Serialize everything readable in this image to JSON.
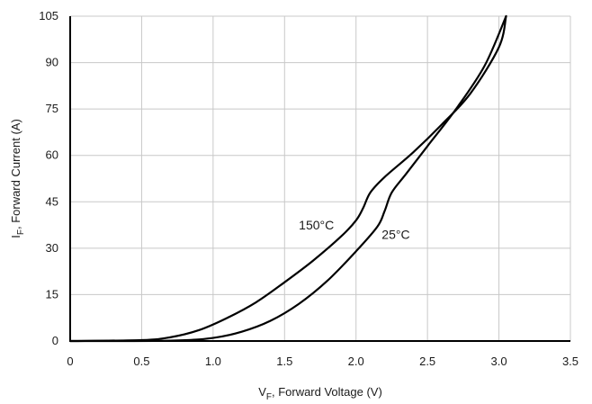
{
  "chart_data": {
    "type": "line",
    "xlabel": {
      "main": "V",
      "sub": "F",
      "rest": ", Forward Voltage (V)"
    },
    "ylabel": {
      "main": "I",
      "sub": "F",
      "rest": ", Forward Current (A)"
    },
    "xlim": [
      0,
      3.5
    ],
    "ylim": [
      0,
      105
    ],
    "xticks": [
      "0",
      "0.5",
      "1.0",
      "1.5",
      "2.0",
      "2.5",
      "3.0",
      "3.5"
    ],
    "xtick_values": [
      0,
      0.5,
      1.0,
      1.5,
      2.0,
      2.5,
      3.0,
      3.5
    ],
    "yticks": [
      "0",
      "15",
      "30",
      "45",
      "60",
      "75",
      "90",
      "105"
    ],
    "ytick_values": [
      0,
      15,
      30,
      45,
      60,
      75,
      90,
      105
    ],
    "grid": true,
    "series": [
      {
        "name": "150°C",
        "color": "#000000",
        "label_at": [
          1.6,
          36
        ],
        "points": [
          [
            0,
            0
          ],
          [
            0.5,
            0.3
          ],
          [
            0.7,
            1.2
          ],
          [
            0.9,
            3.5
          ],
          [
            1.1,
            7.5
          ],
          [
            1.3,
            12.5
          ],
          [
            1.5,
            19
          ],
          [
            1.7,
            26
          ],
          [
            1.9,
            34
          ],
          [
            2.0,
            39
          ],
          [
            2.05,
            43
          ],
          [
            2.1,
            48
          ],
          [
            2.2,
            53
          ],
          [
            2.4,
            61
          ],
          [
            2.6,
            70
          ],
          [
            2.8,
            80
          ],
          [
            3.0,
            95
          ],
          [
            3.05,
            105
          ]
        ]
      },
      {
        "name": "25°C",
        "color": "#000000",
        "label_at": [
          2.18,
          33
        ],
        "points": [
          [
            0,
            0
          ],
          [
            0.7,
            0.1
          ],
          [
            1.0,
            1
          ],
          [
            1.2,
            3
          ],
          [
            1.4,
            6.5
          ],
          [
            1.6,
            12
          ],
          [
            1.8,
            19.5
          ],
          [
            2.0,
            29
          ],
          [
            2.15,
            37
          ],
          [
            2.2,
            42
          ],
          [
            2.25,
            48
          ],
          [
            2.35,
            54
          ],
          [
            2.5,
            63
          ],
          [
            2.7,
            75
          ],
          [
            2.9,
            89
          ],
          [
            3.05,
            105
          ]
        ]
      }
    ]
  }
}
